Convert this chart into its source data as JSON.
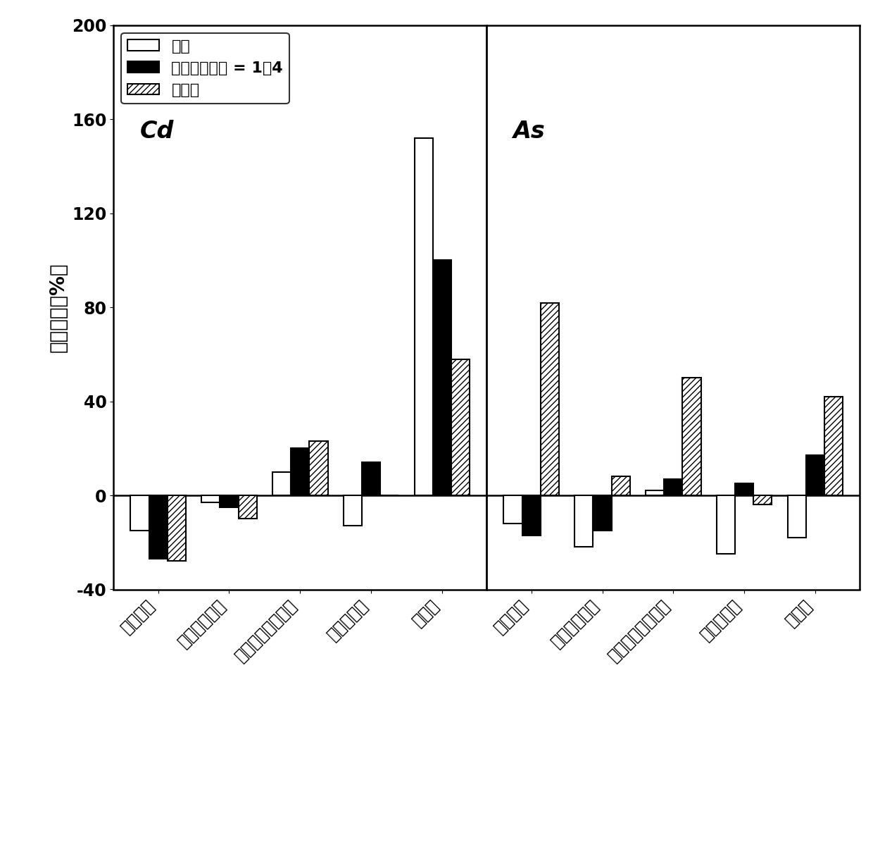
{
  "cd_categories": [
    "可交换态",
    "碳酸盐结合态",
    "铁锰氧化物结合态",
    "有机结合态",
    "残渣态"
  ],
  "as_categories": [
    "可交换态",
    "碳酸盐结合态",
    "铁锰氧化物结合态",
    "有机结合态",
    "残渣态"
  ],
  "cd_steel_slag": [
    -15,
    -3,
    10,
    -13,
    152
  ],
  "cd_mixed": [
    -27,
    -5,
    20,
    14,
    100
  ],
  "cd_phosphate": [
    -28,
    -10,
    23,
    0,
    58
  ],
  "as_steel_slag": [
    -12,
    -22,
    2,
    -25,
    -18
  ],
  "as_mixed": [
    -17,
    -15,
    7,
    5,
    17
  ],
  "as_phosphate": [
    82,
    8,
    50,
    -4,
    42
  ],
  "legend_labels": [
    "钢渣",
    "磷矿粉：钢渣 = 1：4",
    "磷矿粉"
  ],
  "ylabel": "变化率／（%）",
  "ylim": [
    -40,
    200
  ],
  "yticks": [
    -40,
    0,
    40,
    80,
    120,
    160,
    200
  ],
  "cd_label": "Cd",
  "as_label": "As",
  "bar_width": 0.26,
  "tick_fontsize": 17,
  "label_fontsize": 20,
  "legend_fontsize": 16,
  "annot_fontsize": 24
}
